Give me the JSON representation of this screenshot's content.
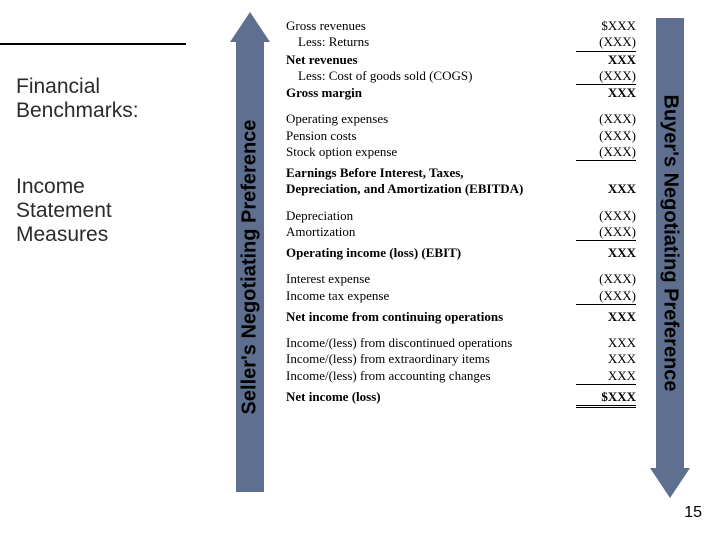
{
  "colors": {
    "arrow": "#5f6f8f",
    "left_border": "#000000",
    "text_dark": "#2b2b2b"
  },
  "left": {
    "title_l1": "Financial",
    "title_l2": "Benchmarks:",
    "sub_l1": "Income",
    "sub_l2": "Statement",
    "sub_l3": "Measures"
  },
  "seller_label": "Seller's Negotiating Preference",
  "buyer_label": "Buyer's Negotiating Preference",
  "income": {
    "lines": [
      {
        "label": "Gross revenues",
        "value": "$XXX"
      },
      {
        "label": "Less: Returns",
        "value": "(XXX)",
        "indent": true,
        "underline": true
      },
      {
        "label": "Net revenues",
        "value": "XXX",
        "bold": true
      },
      {
        "label": "Less: Cost of goods sold (COGS)",
        "value": "(XXX)",
        "indent": true,
        "underline": true
      },
      {
        "label": "Gross margin",
        "value": "XXX",
        "bold": true
      },
      {
        "gap": true
      },
      {
        "label": "Operating expenses",
        "value": "(XXX)"
      },
      {
        "label": "Pension costs",
        "value": "(XXX)"
      },
      {
        "label": "Stock option expense",
        "value": "(XXX)",
        "underline": true
      },
      {
        "gap_sm": true
      },
      {
        "label": "Earnings Before Interest, Taxes,",
        "value": "",
        "bold": true
      },
      {
        "label": "Depreciation, and Amortization (EBITDA)",
        "value": "XXX",
        "bold": true
      },
      {
        "gap": true
      },
      {
        "label": "Depreciation",
        "value": "(XXX)"
      },
      {
        "label": "Amortization",
        "value": "(XXX)",
        "underline": true
      },
      {
        "gap_sm": true
      },
      {
        "label": "Operating income (loss) (EBIT)",
        "value": "XXX",
        "bold": true
      },
      {
        "gap": true
      },
      {
        "label": "Interest expense",
        "value": "(XXX)"
      },
      {
        "label": "Income tax expense",
        "value": "(XXX)",
        "underline": true
      },
      {
        "gap_sm": true
      },
      {
        "label": "Net income from continuing operations",
        "value": "XXX",
        "bold": true
      },
      {
        "gap": true
      },
      {
        "label": "Income/(less) from discontinued operations",
        "value": "XXX"
      },
      {
        "label": "Income/(less) from extraordinary items",
        "value": "XXX"
      },
      {
        "label": "Income/(less) from accounting changes",
        "value": "XXX",
        "underline": true
      },
      {
        "gap_sm": true
      },
      {
        "label": "Net income (loss)",
        "value": "$XXX",
        "bold": true,
        "double": true
      }
    ]
  },
  "page_number": "15"
}
